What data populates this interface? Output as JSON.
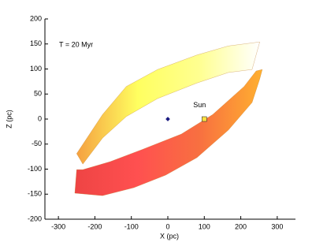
{
  "chart_data": {
    "type": "ribbon",
    "xlabel": "X (pc)",
    "ylabel": "Z (pc)",
    "xlim": [
      -337,
      350
    ],
    "ylim": [
      -200,
      200
    ],
    "xticks": [
      -300,
      -200,
      -100,
      0,
      100,
      200,
      300
    ],
    "yticks": [
      -200,
      -150,
      -100,
      -50,
      0,
      50,
      100,
      150,
      200
    ],
    "bands": [
      {
        "colors": [
          "#f5a040",
          "#ffff60",
          "#ffff90",
          "#ffffff"
        ],
        "x": [
          -250,
          -179,
          -114,
          -28,
          80,
          166,
          252,
          231,
          166,
          80,
          -28,
          -114,
          -179,
          -233
        ],
        "y": [
          -69,
          9,
          65,
          99,
          128,
          146,
          154,
          99,
          93,
          72,
          41,
          5,
          -38,
          -90
        ]
      },
      {
        "colors": [
          "#ee4444",
          "#ff5050",
          "#f87040",
          "#ffb030"
        ],
        "x": [
          -233,
          -158,
          -71,
          37,
          123,
          209,
          242,
          259,
          252,
          231,
          166,
          80,
          -6,
          -93,
          -179,
          -255,
          -250
        ],
        "y": [
          -101,
          -85,
          -61,
          -30,
          9,
          65,
          96,
          99,
          80,
          33,
          -22,
          -77,
          -112,
          -137,
          -153,
          -148,
          -101
        ]
      }
    ],
    "center": {
      "x": 0,
      "y": 0,
      "color": "#1a1a80"
    },
    "sun": {
      "x": 100,
      "y": 0,
      "color": "#ffe040",
      "label": "Sun",
      "label_x": 87,
      "label_y": 27
    },
    "annotation": {
      "text": "T = 20 Myr",
      "x": -298,
      "y": 148
    }
  }
}
